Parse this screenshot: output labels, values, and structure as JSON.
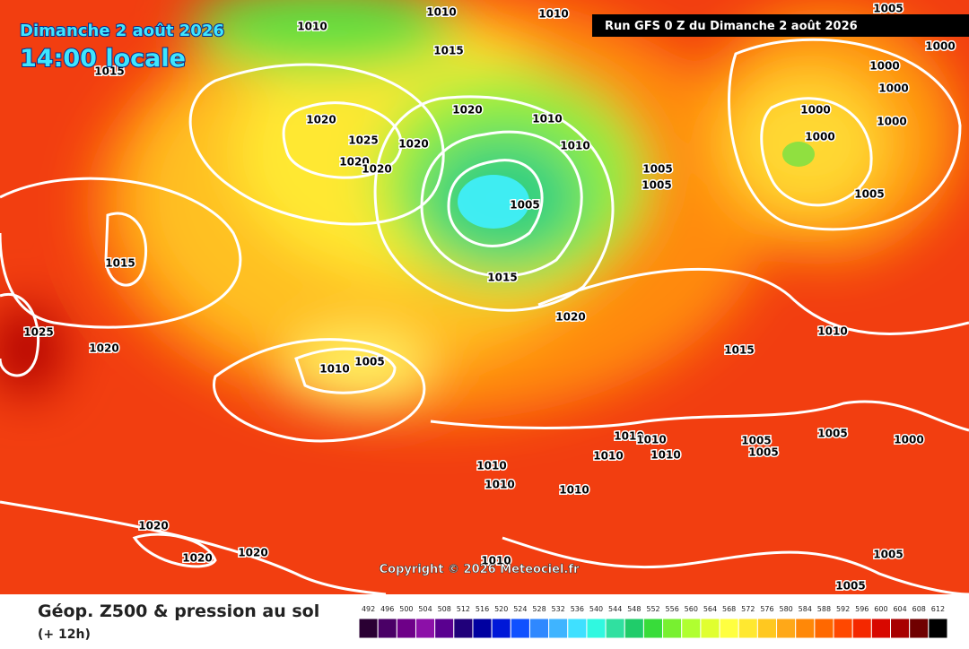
{
  "header": {
    "date": "Dimanche 2 août 2026",
    "time": "14:00 locale",
    "run": "Run GFS 0 Z du Dimanche 2 août 2026"
  },
  "map": {
    "isobar_labels": [
      1010,
      1010,
      1010,
      1005,
      1015,
      1015,
      1020,
      1025,
      1020,
      1020,
      1020,
      1020,
      1010,
      1010,
      1005,
      1005,
      1005,
      1015,
      1020,
      1015,
      1025,
      1020,
      1010,
      1005,
      1015,
      1010,
      1000,
      1000,
      1000,
      1000,
      1000,
      1000,
      1005,
      1010,
      1010,
      1010,
      1010,
      1005,
      1005,
      1005,
      1000,
      1010,
      1010,
      1010,
      1020,
      1020,
      1020,
      1010,
      1005,
      1005
    ]
  },
  "copyright": "Copyright © 2026 Meteociel.fr",
  "footer": {
    "title": "Géop. Z500 & pression au sol",
    "lead": "(+ 12h)"
  },
  "legend": {
    "values": [
      492,
      496,
      500,
      504,
      508,
      512,
      516,
      520,
      524,
      528,
      532,
      536,
      540,
      544,
      548,
      552,
      556,
      560,
      564,
      568,
      572,
      576,
      580,
      584,
      588,
      592,
      596,
      600,
      604,
      608,
      612
    ],
    "colors": [
      "#2a0033",
      "#4a0066",
      "#6e0088",
      "#8c10a8",
      "#5a0090",
      "#20007a",
      "#0000a0",
      "#0018d8",
      "#1050ff",
      "#2f88ff",
      "#3fb4ff",
      "#3fe0ff",
      "#30f8e0",
      "#30e0a0",
      "#20cc6a",
      "#38dc3a",
      "#78f030",
      "#b0ff30",
      "#e0ff30",
      "#ffff40",
      "#ffe830",
      "#ffc820",
      "#ffa818",
      "#ff8808",
      "#ff6800",
      "#ff4800",
      "#f42800",
      "#d80800",
      "#a80000",
      "#700000",
      "#000000"
    ]
  }
}
